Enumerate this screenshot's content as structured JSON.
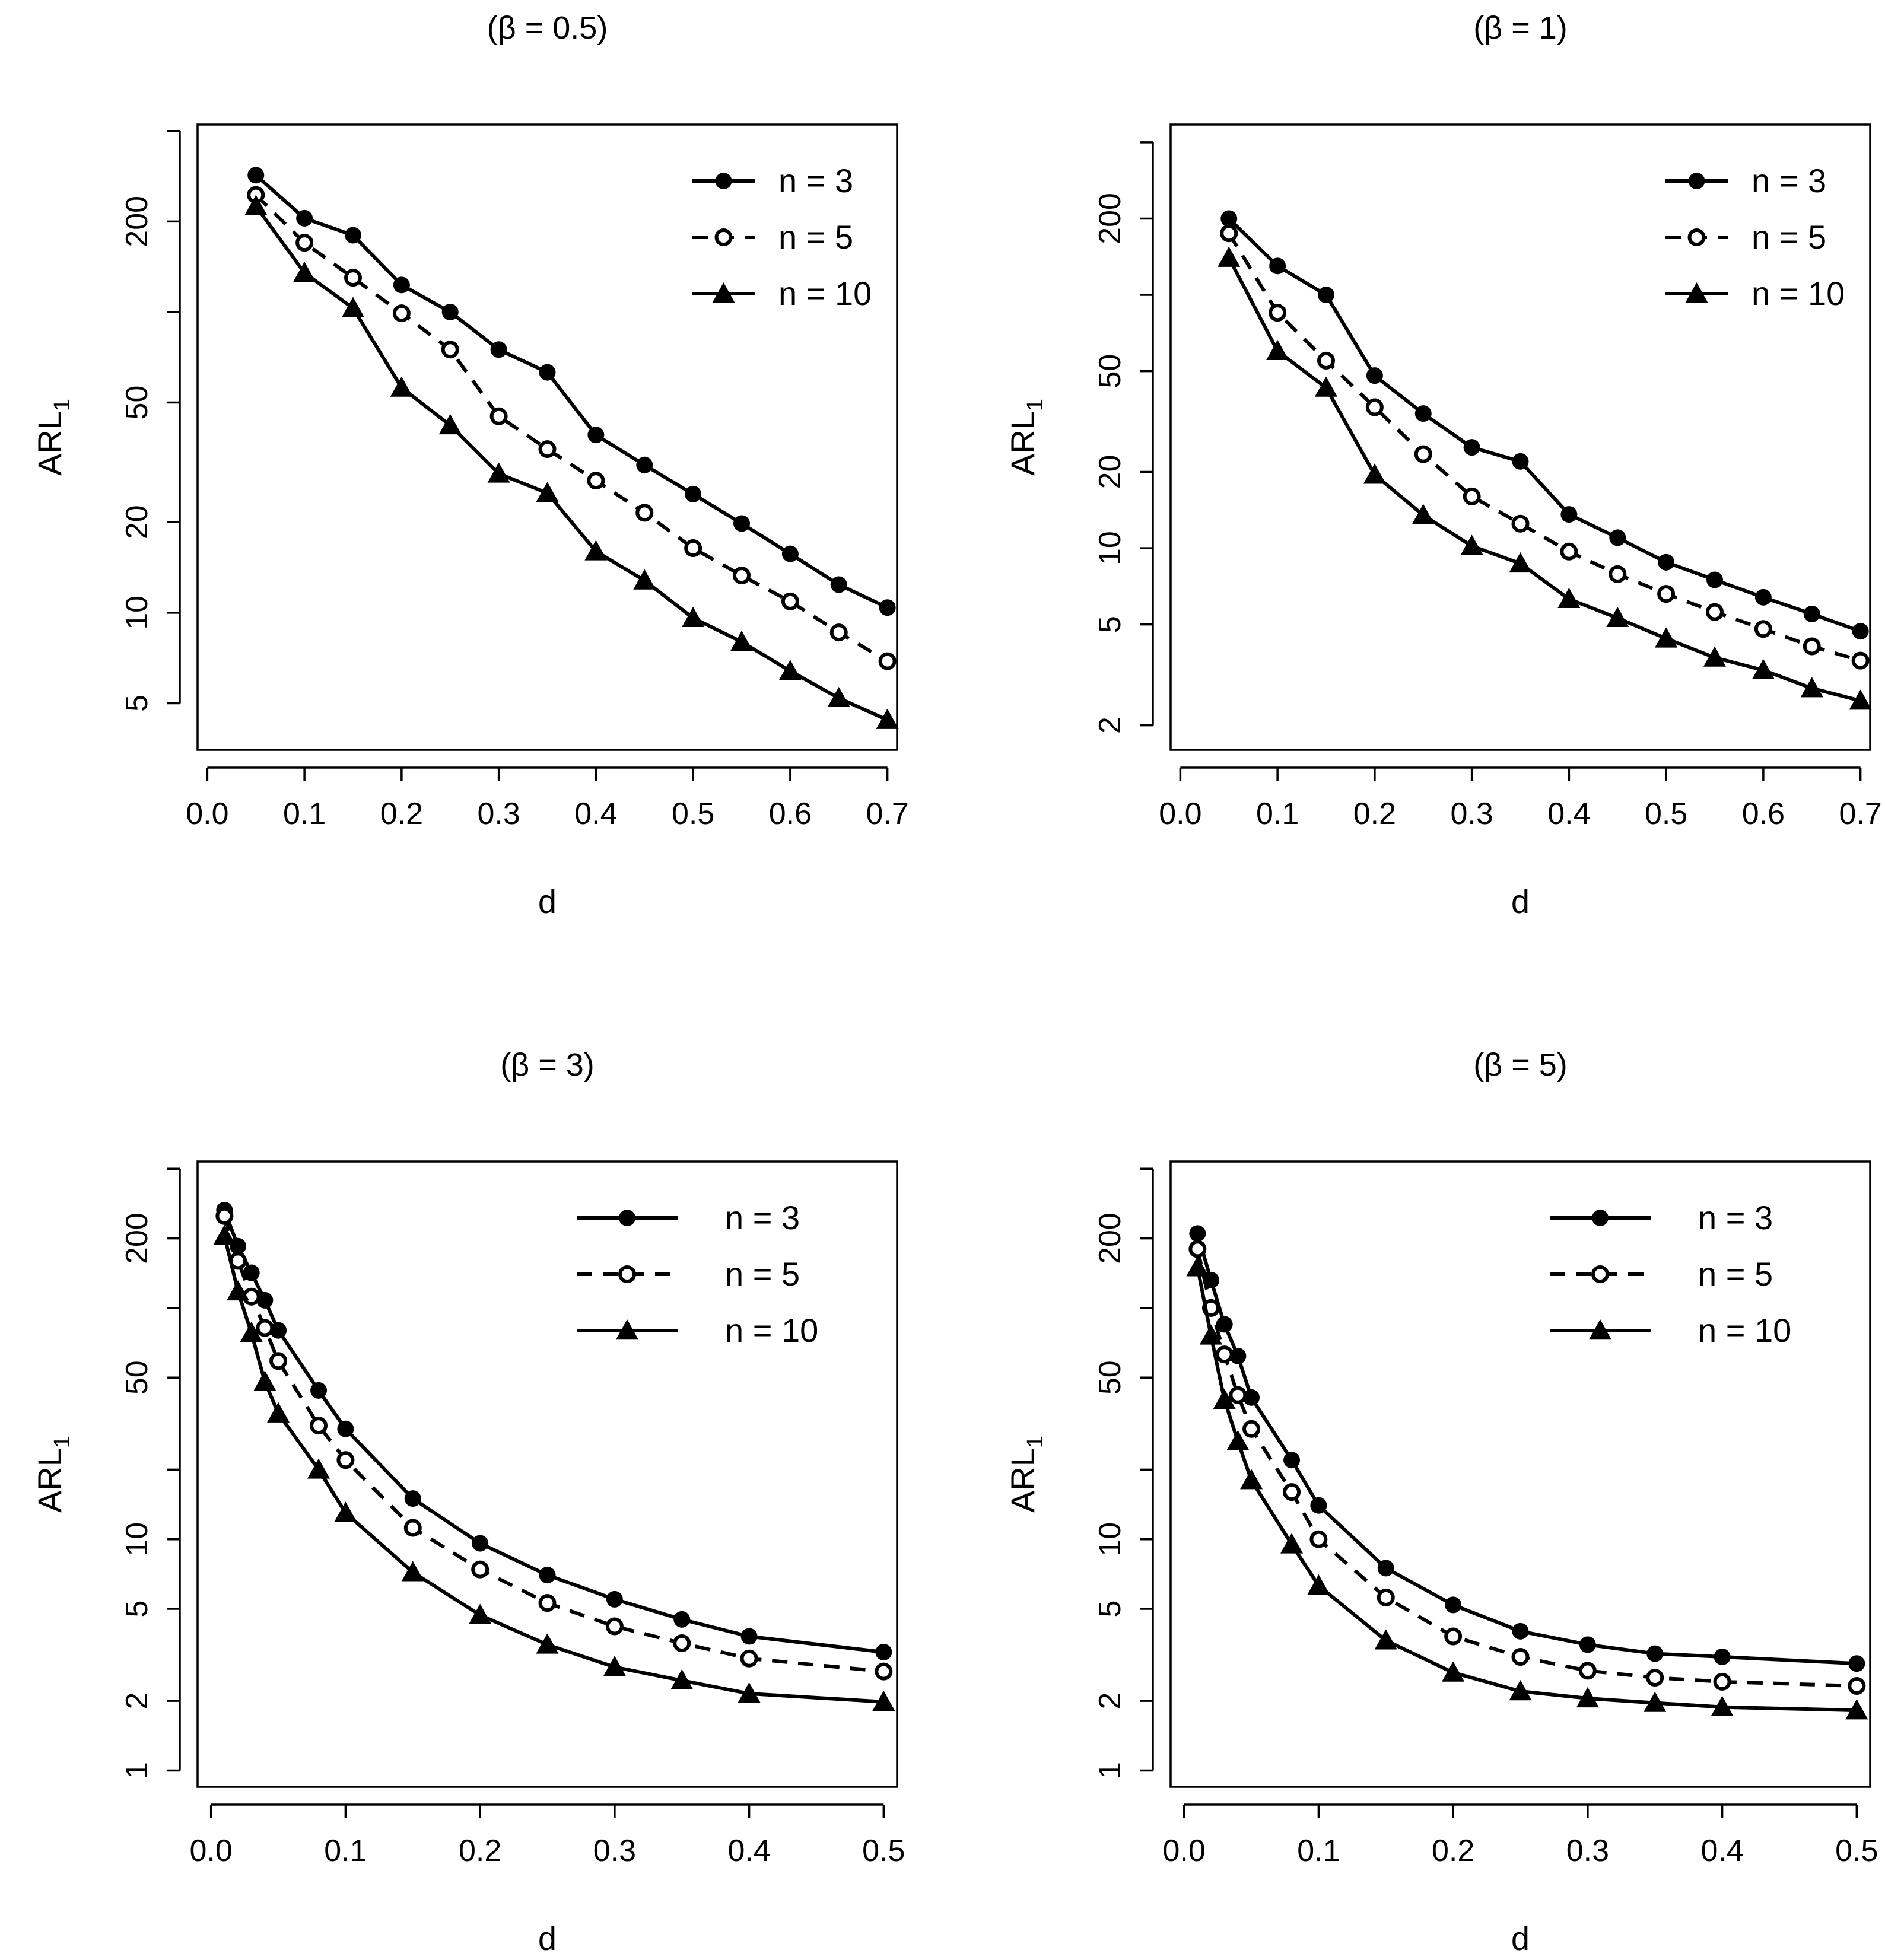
{
  "chart_data": [
    {
      "type": "line",
      "title": "(β = 0.5)",
      "xlabel": "d",
      "ylabel": "ARL",
      "ylabel_sub": "1",
      "yscale": "log",
      "xlim": [
        -0.01,
        0.71
      ],
      "ylim": [
        3.5,
        420
      ],
      "xticks": [
        "0.0",
        "0.1",
        "0.2",
        "0.3",
        "0.4",
        "0.5",
        "0.6",
        "0.7"
      ],
      "yticks": [
        "5",
        "10",
        "20",
        "50",
        "200"
      ],
      "legend_position": "top-right",
      "x": [
        0.05,
        0.1,
        0.15,
        0.2,
        0.25,
        0.3,
        0.35,
        0.4,
        0.45,
        0.5,
        0.55,
        0.6,
        0.65,
        0.7
      ],
      "series": [
        {
          "name": "n = 3",
          "marker": "filled-circle",
          "line": "solid",
          "values": [
            285,
            205,
            180,
            123,
            100,
            75,
            63,
            39,
            31,
            24.8,
            19.8,
            15.7,
            12.4,
            10.4
          ]
        },
        {
          "name": "n = 5",
          "marker": "open-circle",
          "line": "dashed",
          "values": [
            245,
            170,
            130,
            99,
            75,
            45,
            35,
            27.5,
            21.5,
            16.4,
            13.3,
            10.9,
            8.6,
            6.9
          ]
        },
        {
          "name": "n = 10",
          "marker": "filled-triangle",
          "line": "solid",
          "values": [
            225,
            135,
            103,
            56,
            42,
            29,
            25,
            16,
            12.8,
            9.6,
            8.0,
            6.4,
            5.2,
            4.4
          ]
        }
      ]
    },
    {
      "type": "line",
      "title": "(β = 1)",
      "xlabel": "d",
      "ylabel": "ARL",
      "ylabel_sub": "1",
      "yscale": "log",
      "xlim": [
        -0.01,
        0.71
      ],
      "ylim": [
        1.6,
        470
      ],
      "xticks": [
        "0.0",
        "0.1",
        "0.2",
        "0.3",
        "0.4",
        "0.5",
        "0.6",
        "0.7"
      ],
      "yticks": [
        "2",
        "5",
        "10",
        "20",
        "50",
        "200"
      ],
      "legend_position": "top-right",
      "x": [
        0.05,
        0.1,
        0.15,
        0.2,
        0.25,
        0.3,
        0.35,
        0.4,
        0.45,
        0.5,
        0.55,
        0.6,
        0.65,
        0.7
      ],
      "series": [
        {
          "name": "n = 3",
          "marker": "filled-circle",
          "line": "solid",
          "values": [
            200,
            130,
            100,
            48,
            34,
            25,
            22,
            13.6,
            11,
            8.8,
            7.5,
            6.4,
            5.5,
            4.7
          ]
        },
        {
          "name": "n = 5",
          "marker": "open-circle",
          "line": "dashed",
          "values": [
            175,
            85,
            55,
            36,
            23.5,
            16,
            12.5,
            9.7,
            7.9,
            6.6,
            5.6,
            4.8,
            4.1,
            3.6
          ]
        },
        {
          "name": "n = 10",
          "marker": "filled-triangle",
          "line": "solid",
          "values": [
            140,
            60,
            43,
            19.5,
            13.5,
            10.2,
            8.7,
            6.3,
            5.3,
            4.4,
            3.7,
            3.3,
            2.8,
            2.5
          ]
        }
      ]
    },
    {
      "type": "line",
      "title": "(β = 3)",
      "xlabel": "d",
      "ylabel": "ARL",
      "ylabel_sub": "1",
      "yscale": "log",
      "xlim": [
        -0.01,
        0.51
      ],
      "ylim": [
        0.85,
        430
      ],
      "xticks": [
        "0.0",
        "0.1",
        "0.2",
        "0.3",
        "0.4",
        "0.5"
      ],
      "yticks": [
        "1",
        "2",
        "5",
        "10",
        "50",
        "200"
      ],
      "legend_position": "top-right",
      "x": [
        0.01,
        0.02,
        0.03,
        0.04,
        0.05,
        0.08,
        0.1,
        0.15,
        0.2,
        0.25,
        0.3,
        0.35,
        0.4,
        0.5
      ],
      "series": [
        {
          "name": "n = 3",
          "marker": "filled-circle",
          "line": "solid",
          "values": [
            265,
            185,
            142,
            108,
            80,
            44,
            30,
            15,
            9.6,
            7,
            5.5,
            4.5,
            3.8,
            3.25
          ]
        },
        {
          "name": "n = 5",
          "marker": "open-circle",
          "line": "dashed",
          "values": [
            250,
            160,
            112,
            82,
            59,
            31,
            22,
            11.2,
            7.4,
            5.3,
            4.2,
            3.55,
            3.05,
            2.68
          ]
        },
        {
          "name": "n = 10",
          "marker": "filled-triangle",
          "line": "solid",
          "values": [
            205,
            118,
            78,
            48,
            35,
            20,
            13,
            7.2,
            4.7,
            3.5,
            2.8,
            2.45,
            2.15,
            1.98
          ]
        }
      ]
    },
    {
      "type": "line",
      "title": "(β = 5)",
      "xlabel": "d",
      "ylabel": "ARL",
      "ylabel_sub": "1",
      "yscale": "log",
      "xlim": [
        -0.01,
        0.51
      ],
      "ylim": [
        0.85,
        430
      ],
      "xticks": [
        "0.0",
        "0.1",
        "0.2",
        "0.3",
        "0.4",
        "0.5"
      ],
      "yticks": [
        "1",
        "2",
        "5",
        "10",
        "50",
        "200"
      ],
      "legend_position": "top-right",
      "x": [
        0.01,
        0.02,
        0.03,
        0.04,
        0.05,
        0.08,
        0.1,
        0.15,
        0.2,
        0.25,
        0.3,
        0.35,
        0.4,
        0.5
      ],
      "series": [
        {
          "name": "n = 3",
          "marker": "filled-circle",
          "line": "solid",
          "values": [
            210,
            132,
            85,
            62,
            41,
            22,
            14,
            7.5,
            5.2,
            4.0,
            3.5,
            3.2,
            3.1,
            2.9
          ]
        },
        {
          "name": "n = 5",
          "marker": "open-circle",
          "line": "dashed",
          "values": [
            180,
            100,
            63,
            42,
            30,
            16,
            10,
            5.6,
            3.8,
            3.1,
            2.7,
            2.52,
            2.42,
            2.32
          ]
        },
        {
          "name": "n = 10",
          "marker": "filled-triangle",
          "line": "solid",
          "values": [
            150,
            76,
            40,
            26.5,
            18,
            9.5,
            6.3,
            3.65,
            2.65,
            2.2,
            2.05,
            1.96,
            1.88,
            1.82
          ]
        }
      ]
    }
  ]
}
